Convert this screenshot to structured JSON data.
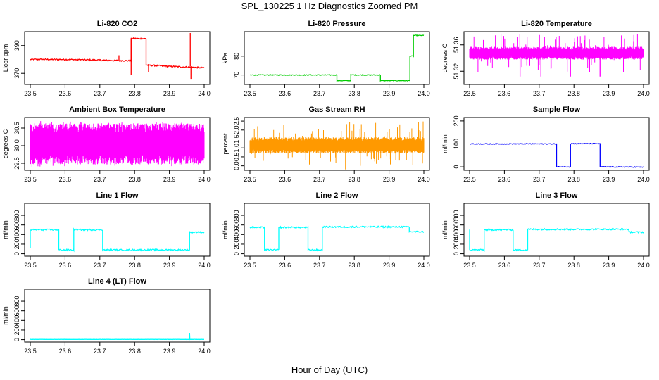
{
  "title": "SPL_130225  1 Hz Diagnostics Zoomed PM",
  "xlabel": "Hour of Day (UTC)",
  "chart_data": [
    {
      "type": "line",
      "title": "Li-820 CO2",
      "ylabel": "Licor ppm",
      "color": "#ff0000",
      "xlim": [
        23.5,
        24.0
      ],
      "ylim": [
        362,
        400
      ],
      "xticks": [
        "23.5",
        "23.6",
        "23.7",
        "23.8",
        "23.9",
        "24.0"
      ],
      "yticks": [
        {
          "v": 370,
          "label": "370"
        },
        {
          "v": 390,
          "label": "390"
        }
      ],
      "noise": 0.5,
      "series": [
        {
          "x": 23.5,
          "y": 380
        },
        {
          "x": 23.6,
          "y": 380
        },
        {
          "x": 23.7,
          "y": 379.5
        },
        {
          "x": 23.79,
          "y": 379
        },
        {
          "x": 23.79,
          "y": 395
        },
        {
          "x": 23.833,
          "y": 395
        },
        {
          "x": 23.833,
          "y": 376
        },
        {
          "x": 23.9,
          "y": 375
        },
        {
          "x": 24.0,
          "y": 374
        }
      ],
      "spikes": [
        {
          "x": 23.755,
          "y": 383
        },
        {
          "x": 23.79,
          "y": 369
        },
        {
          "x": 23.84,
          "y": 371
        },
        {
          "x": 23.96,
          "y": 399
        },
        {
          "x": 23.962,
          "y": 366
        }
      ]
    },
    {
      "type": "line",
      "title": "Li-820 Pressure",
      "ylabel": "kPa",
      "color": "#00cc00",
      "xlim": [
        23.5,
        24.0
      ],
      "ylim": [
        65,
        93
      ],
      "xticks": [
        "23.5",
        "23.6",
        "23.7",
        "23.8",
        "23.9",
        "24.0"
      ],
      "yticks": [
        {
          "v": 70,
          "label": "70"
        },
        {
          "v": 80,
          "label": "80"
        }
      ],
      "noise": 0.2,
      "series": [
        {
          "x": 23.5,
          "y": 70
        },
        {
          "x": 23.75,
          "y": 70
        },
        {
          "x": 23.75,
          "y": 67
        },
        {
          "x": 23.79,
          "y": 67
        },
        {
          "x": 23.79,
          "y": 70
        },
        {
          "x": 23.875,
          "y": 70
        },
        {
          "x": 23.875,
          "y": 67
        },
        {
          "x": 23.96,
          "y": 67
        },
        {
          "x": 23.96,
          "y": 80
        },
        {
          "x": 23.97,
          "y": 80
        },
        {
          "x": 23.97,
          "y": 91
        },
        {
          "x": 24.0,
          "y": 91
        }
      ]
    },
    {
      "type": "band",
      "title": "Li-820 Temperature",
      "ylabel": "degrees C",
      "color": "#ff00ff",
      "xlim": [
        23.5,
        24.0
      ],
      "ylim": [
        51.3,
        51.38
      ],
      "xticks": [
        "23.5",
        "23.6",
        "23.7",
        "23.8",
        "23.9",
        "24.0"
      ],
      "yticks": [
        {
          "v": 51.32,
          "label": "51.32"
        },
        {
          "v": 51.36,
          "label": "51.36"
        }
      ],
      "band_low": 51.34,
      "band_high": 51.355,
      "spike_high": 51.378,
      "spike_low": 51.312,
      "down_spikes": [
        23.645,
        23.705,
        23.79,
        23.875
      ]
    },
    {
      "type": "band",
      "title": "Ambient Box Temperature",
      "ylabel": "degrees C",
      "color": "#ff00ff",
      "xlim": [
        23.5,
        24.0
      ],
      "ylim": [
        29.3,
        30.8
      ],
      "xticks": [
        "23.5",
        "23.6",
        "23.7",
        "23.8",
        "23.9",
        "24.0"
      ],
      "yticks": [
        {
          "v": 29.5,
          "label": "29.5"
        },
        {
          "v": 30.0,
          "label": "30.0"
        },
        {
          "v": 30.5,
          "label": "30.5"
        }
      ],
      "band_low": 29.6,
      "band_high": 30.5,
      "spike_high": 30.7,
      "spike_low": 29.35,
      "down_spikes": []
    },
    {
      "type": "band",
      "title": "Gas Stream RH",
      "ylabel": "percent",
      "color": "#ff9900",
      "xlim": [
        23.5,
        24.0
      ],
      "ylim": [
        -0.25,
        2.7
      ],
      "xticks": [
        "23.5",
        "23.6",
        "23.7",
        "23.8",
        "23.9",
        "24.0"
      ],
      "yticks": [
        {
          "v": 0.0,
          "label": "0.0"
        },
        {
          "v": 0.5,
          "label": "0.5"
        },
        {
          "v": 1.0,
          "label": "1.0"
        },
        {
          "v": 1.5,
          "label": "1.5"
        },
        {
          "v": 2.0,
          "label": "2.0"
        },
        {
          "v": 2.5,
          "label": "2.5"
        }
      ],
      "band_low": 0.8,
      "band_high": 1.5,
      "spike_high": 2.5,
      "spike_low": -0.2,
      "down_spikes": [
        23.775
      ]
    },
    {
      "type": "line",
      "title": "Sample Flow",
      "ylabel": "ml/min",
      "color": "#0000ff",
      "xlim": [
        23.5,
        24.0
      ],
      "ylim": [
        -15,
        215
      ],
      "xticks": [
        "23.5",
        "23.6",
        "23.7",
        "23.8",
        "23.9",
        "24.0"
      ],
      "yticks": [
        {
          "v": 0,
          "label": "0"
        },
        {
          "v": 100,
          "label": "100"
        },
        {
          "v": 200,
          "label": "200"
        }
      ],
      "noise": 1.5,
      "series": [
        {
          "x": 23.5,
          "y": 100
        },
        {
          "x": 23.75,
          "y": 100
        },
        {
          "x": 23.75,
          "y": 0
        },
        {
          "x": 23.79,
          "y": 0
        },
        {
          "x": 23.79,
          "y": 101
        },
        {
          "x": 23.875,
          "y": 101
        },
        {
          "x": 23.875,
          "y": 0
        },
        {
          "x": 24.0,
          "y": -1
        }
      ]
    },
    {
      "type": "line",
      "title": "Line 1 Flow",
      "ylabel": "ml/min",
      "color": "#00ffff",
      "xlim": [
        23.5,
        24.0
      ],
      "ylim": [
        -50,
        1050
      ],
      "xticks": [
        "23.5",
        "23.6",
        "23.7",
        "23.8",
        "23.9",
        "24.0"
      ],
      "yticks": [
        {
          "v": 0,
          "label": "0"
        },
        {
          "v": 200,
          "label": "200"
        },
        {
          "v": 400,
          "label": "400"
        },
        {
          "v": 600,
          "label": "600"
        },
        {
          "v": 800,
          "label": "800"
        }
      ],
      "noise": 15,
      "series": [
        {
          "x": 23.5,
          "y": 100
        },
        {
          "x": 23.5,
          "y": 500
        },
        {
          "x": 23.582,
          "y": 500
        },
        {
          "x": 23.582,
          "y": 80
        },
        {
          "x": 23.625,
          "y": 80
        },
        {
          "x": 23.625,
          "y": 500
        },
        {
          "x": 23.708,
          "y": 500
        },
        {
          "x": 23.708,
          "y": 80
        },
        {
          "x": 23.958,
          "y": 80
        },
        {
          "x": 23.958,
          "y": 450
        },
        {
          "x": 24.0,
          "y": 450
        }
      ]
    },
    {
      "type": "line",
      "title": "Line 2 Flow",
      "ylabel": "ml/min",
      "color": "#00ffff",
      "xlim": [
        23.5,
        24.0
      ],
      "ylim": [
        -50,
        1050
      ],
      "xticks": [
        "23.5",
        "23.6",
        "23.7",
        "23.8",
        "23.9",
        "24.0"
      ],
      "yticks": [
        {
          "v": 0,
          "label": "0"
        },
        {
          "v": 200,
          "label": "200"
        },
        {
          "v": 400,
          "label": "400"
        },
        {
          "v": 600,
          "label": "600"
        },
        {
          "v": 800,
          "label": "800"
        }
      ],
      "noise": 15,
      "series": [
        {
          "x": 23.5,
          "y": 550
        },
        {
          "x": 23.542,
          "y": 550
        },
        {
          "x": 23.542,
          "y": 80
        },
        {
          "x": 23.583,
          "y": 80
        },
        {
          "x": 23.583,
          "y": 550
        },
        {
          "x": 23.667,
          "y": 550
        },
        {
          "x": 23.667,
          "y": 80
        },
        {
          "x": 23.708,
          "y": 80
        },
        {
          "x": 23.708,
          "y": 560
        },
        {
          "x": 23.958,
          "y": 560
        },
        {
          "x": 23.958,
          "y": 460
        },
        {
          "x": 24.0,
          "y": 460
        }
      ]
    },
    {
      "type": "line",
      "title": "Line 3 Flow",
      "ylabel": "ml/min",
      "color": "#00ffff",
      "xlim": [
        23.5,
        24.0
      ],
      "ylim": [
        -50,
        1050
      ],
      "xticks": [
        "23.5",
        "23.6",
        "23.7",
        "23.8",
        "23.9",
        "24.0"
      ],
      "yticks": [
        {
          "v": 0,
          "label": "0"
        },
        {
          "v": 200,
          "label": "200"
        },
        {
          "v": 400,
          "label": "400"
        },
        {
          "v": 600,
          "label": "600"
        },
        {
          "v": 800,
          "label": "800"
        }
      ],
      "noise": 15,
      "series": [
        {
          "x": 23.5,
          "y": 500
        },
        {
          "x": 23.5,
          "y": 80
        },
        {
          "x": 23.542,
          "y": 80
        },
        {
          "x": 23.542,
          "y": 500
        },
        {
          "x": 23.625,
          "y": 500
        },
        {
          "x": 23.625,
          "y": 80
        },
        {
          "x": 23.667,
          "y": 80
        },
        {
          "x": 23.667,
          "y": 510
        },
        {
          "x": 23.958,
          "y": 510
        },
        {
          "x": 23.958,
          "y": 450
        },
        {
          "x": 24.0,
          "y": 450
        }
      ]
    },
    {
      "type": "line",
      "title": "Line 4 (LT) Flow",
      "ylabel": "ml/min",
      "color": "#00ffff",
      "xlim": [
        23.5,
        24.0
      ],
      "ylim": [
        -50,
        1050
      ],
      "xticks": [
        "23.5",
        "23.6",
        "23.7",
        "23.8",
        "23.9",
        "24.0"
      ],
      "yticks": [
        {
          "v": 0,
          "label": "0"
        },
        {
          "v": 200,
          "label": "200"
        },
        {
          "v": 400,
          "label": "400"
        },
        {
          "v": 600,
          "label": "600"
        },
        {
          "v": 800,
          "label": "800"
        }
      ],
      "noise": 2,
      "series": [
        {
          "x": 23.5,
          "y": 5
        },
        {
          "x": 23.958,
          "y": 5
        },
        {
          "x": 23.958,
          "y": 140
        },
        {
          "x": 23.959,
          "y": 5
        },
        {
          "x": 24.0,
          "y": 5
        }
      ]
    }
  ]
}
